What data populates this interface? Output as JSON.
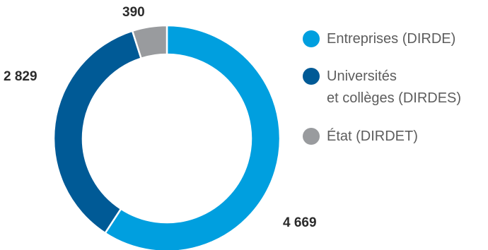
{
  "chart_data": {
    "type": "pie",
    "variant": "donut",
    "title": "",
    "categories": [
      "Entreprises (DIRDE)",
      "Universités\net collèges (DIRDES)",
      "État (DIRDET)"
    ],
    "values": [
      4669,
      2829,
      390
    ],
    "value_labels": [
      "4 669",
      "2 829",
      "390"
    ],
    "colors": [
      "#009fdf",
      "#005a96",
      "#999b9e"
    ],
    "legend_position": "right"
  }
}
